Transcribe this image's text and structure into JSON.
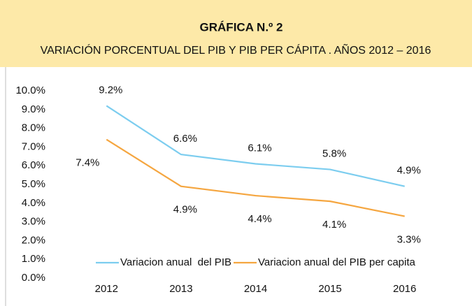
{
  "chart_data": {
    "type": "line",
    "title": "GRÁFICA N.º 2",
    "subtitle": "VARIACIÓN PORCENTUAL DEL PIB Y PIB PER CÁPITA . AÑOS 2012 – 2016",
    "categories": [
      "2012",
      "2013",
      "2014",
      "2015",
      "2016"
    ],
    "series": [
      {
        "name": "Variacion anual  del PIB",
        "color": "#7ccdef",
        "values": [
          9.2,
          6.6,
          6.1,
          5.8,
          4.9
        ],
        "value_labels": [
          "9.2%",
          "6.6%",
          "6.1%",
          "5.8%",
          "4.9%"
        ]
      },
      {
        "name": "Variacion anual del PIB per capita",
        "color": "#f5a640",
        "values": [
          7.4,
          4.9,
          4.4,
          4.1,
          3.3
        ],
        "value_labels": [
          "7.4%",
          "4.9%",
          "4.4%",
          "4.1%",
          "3.3%"
        ]
      }
    ],
    "ylim": [
      0,
      10
    ],
    "yticks": [
      {
        "value": 0,
        "label": "0.0%"
      },
      {
        "value": 1,
        "label": "1.0%"
      },
      {
        "value": 2,
        "label": "2.0%"
      },
      {
        "value": 3,
        "label": "3.0%"
      },
      {
        "value": 4,
        "label": "4.0%"
      },
      {
        "value": 5,
        "label": "5.0%"
      },
      {
        "value": 6,
        "label": "6.0%"
      },
      {
        "value": 7,
        "label": "7.0%"
      },
      {
        "value": 8,
        "label": "8.0%"
      },
      {
        "value": 9,
        "label": "9.0%"
      },
      {
        "value": 10,
        "label": "10.0%"
      }
    ],
    "grid": false,
    "legend": "bottom"
  }
}
